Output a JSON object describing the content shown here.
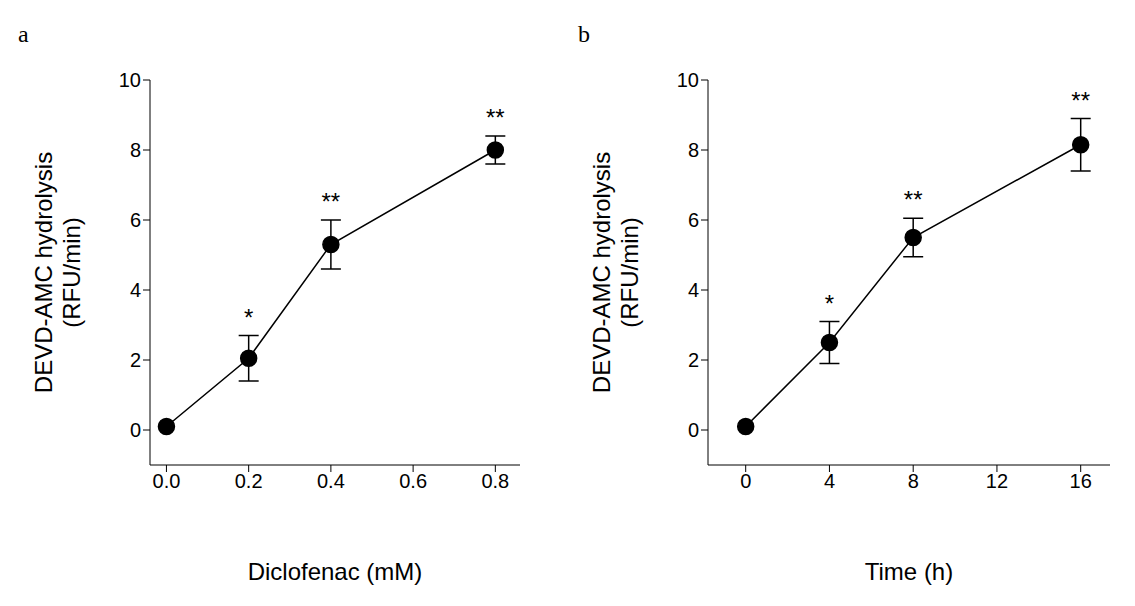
{
  "chart_data": [
    {
      "type": "line",
      "panel_label": "a",
      "xlabel": "Diclofenac (mM)",
      "ylabel": "DEVD-AMC hydrolysis\n(RFU/min)",
      "x": [
        0,
        0.2,
        0.4,
        0.8
      ],
      "values": [
        0.1,
        2.05,
        5.3,
        8.0
      ],
      "errors": [
        0,
        0.65,
        0.7,
        0.4
      ],
      "significance": [
        null,
        "*",
        "**",
        "**"
      ],
      "color": "#000000",
      "marker": "circle",
      "xlim": [
        -0.04,
        0.86
      ],
      "xticks": [
        {
          "value": 0,
          "label": "0.0"
        },
        {
          "value": 0.2,
          "label": "0.2"
        },
        {
          "value": 0.4,
          "label": "0.4"
        },
        {
          "value": 0.6,
          "label": "0.6"
        },
        {
          "value": 0.8,
          "label": "0.8"
        }
      ],
      "ylim": [
        -1,
        10
      ],
      "yticks": [
        0,
        2,
        4,
        6,
        8,
        10
      ]
    },
    {
      "type": "line",
      "panel_label": "b",
      "xlabel": "Time (h)",
      "ylabel": "DEVD-AMC hydrolysis\n(RFU/min)",
      "x": [
        0,
        4,
        8,
        16
      ],
      "values": [
        0.1,
        2.5,
        5.5,
        8.15
      ],
      "errors": [
        0,
        0.6,
        0.55,
        0.75
      ],
      "significance": [
        null,
        "*",
        "**",
        "**"
      ],
      "color": "#000000",
      "marker": "circle",
      "xlim": [
        -1.8,
        17.4
      ],
      "xticks": [
        0,
        4,
        8,
        12,
        16
      ],
      "ylim": [
        -1,
        10
      ],
      "yticks": [
        0,
        2,
        4,
        6,
        8,
        10
      ]
    }
  ]
}
